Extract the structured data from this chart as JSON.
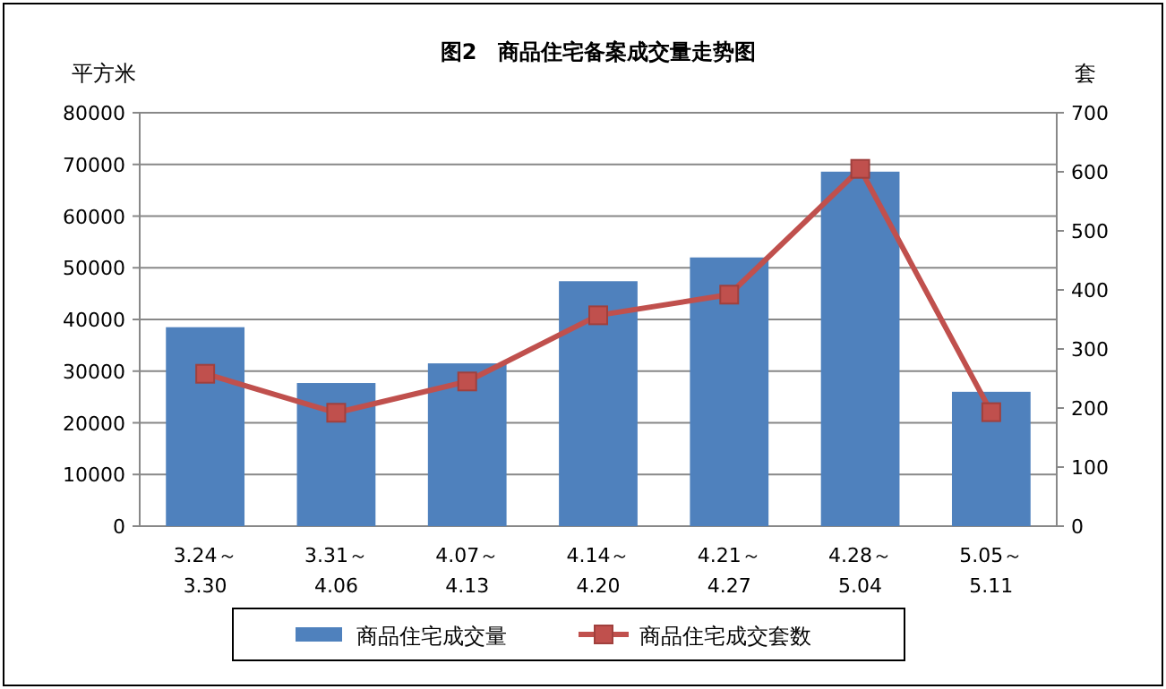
{
  "chart_data": {
    "type": "bar",
    "title": "图2　商品住宅备案成交量走势图",
    "ylabel": "平方米",
    "y2label": "套",
    "categories": [
      "3.24～\n3.30",
      "3.31～\n4.06",
      "4.07～\n4.13",
      "4.14～\n4.20",
      "4.21～\n4.27",
      "4.28～\n5.04",
      "5.05～\n5.11"
    ],
    "series": [
      {
        "name": "商品住宅成交量",
        "color": "#4f81bd",
        "values": [
          38500,
          27700,
          31500,
          47400,
          52000,
          68600,
          26000
        ]
      },
      {
        "name": "商品住宅成交套数",
        "type": "line",
        "axis": "y2",
        "color": "#c0504d",
        "marker": "square",
        "values": [
          258,
          192,
          245,
          357,
          392,
          605,
          193
        ]
      }
    ],
    "ylim": [
      0,
      80000
    ],
    "yticks": [
      0,
      10000,
      20000,
      30000,
      40000,
      50000,
      60000,
      70000,
      80000
    ],
    "y2lim": [
      0,
      700
    ],
    "y2ticks": [
      0,
      100,
      200,
      300,
      400,
      500,
      600,
      700
    ],
    "grid": "y",
    "legend": "bottom"
  }
}
